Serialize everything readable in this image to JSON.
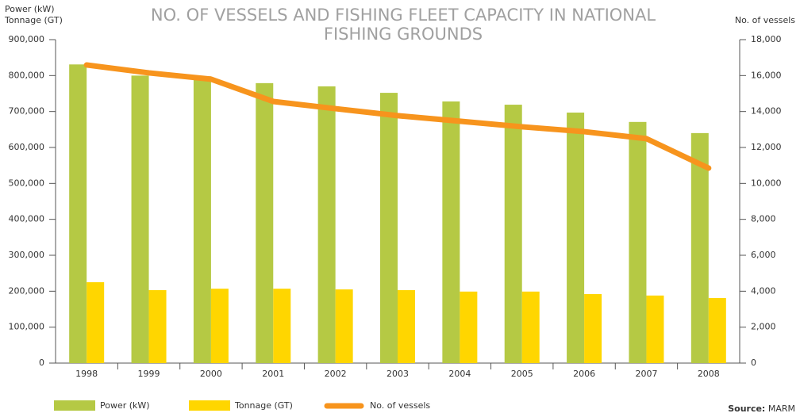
{
  "chart_data": {
    "type": "bar_line",
    "title": [
      "NO. OF VESSELS AND FISHING FLEET CAPACITY IN NATIONAL",
      "FISHING GROUNDS"
    ],
    "y_label": [
      "Power (kW)",
      "Tonnage (GT)"
    ],
    "y2_label": "No. of vessels",
    "source_label": "Source:",
    "source": "MARM",
    "categories": [
      "1998",
      "1999",
      "2000",
      "2001",
      "2002",
      "2003",
      "2004",
      "2005",
      "2006",
      "2007",
      "2008"
    ],
    "series": [
      {
        "name": "Power (kW)",
        "type": "bar",
        "color": "#b5c944",
        "values": [
          831000,
          800000,
          798000,
          779000,
          770000,
          752000,
          728000,
          719000,
          697000,
          671000,
          640000
        ]
      },
      {
        "name": "Tonnage (GT)",
        "type": "bar",
        "color": "#ffd600",
        "values": [
          225000,
          203000,
          207000,
          207000,
          205000,
          203000,
          199000,
          199000,
          192000,
          188000,
          181000
        ]
      },
      {
        "name": "No. of vessels",
        "type": "line",
        "axis": "y2",
        "color": "#f7941d",
        "values": [
          16590,
          16150,
          15800,
          14560,
          14160,
          13770,
          13460,
          13150,
          12880,
          12490,
          10850
        ]
      }
    ],
    "ylim": [
      0,
      900000
    ],
    "yticks": [
      0,
      {
        "value": 100000,
        "label": "100,000"
      },
      {
        "value": 200000,
        "label": "200,000"
      },
      {
        "value": 300000,
        "label": "300,000"
      },
      {
        "value": 400000,
        "label": "400,000"
      },
      {
        "value": 500000,
        "label": "500,000"
      },
      {
        "value": 600000,
        "label": "600,000"
      },
      {
        "value": 700000,
        "label": "700,000"
      },
      {
        "value": 800000,
        "label": "800,000"
      },
      {
        "value": 900000,
        "label": "900,000"
      }
    ],
    "y2lim": [
      0,
      18000
    ],
    "y2ticks": [
      0,
      {
        "value": 2000,
        "label": "2,000"
      },
      {
        "value": 4000,
        "label": "4,000"
      },
      {
        "value": 6000,
        "label": "6,000"
      },
      {
        "value": 8000,
        "label": "8,000"
      },
      {
        "value": 10000,
        "label": "10,000"
      },
      {
        "value": 12000,
        "label": "12,000"
      },
      {
        "value": 14000,
        "label": "14,000"
      },
      {
        "value": 16000,
        "label": "16,000"
      },
      {
        "value": 18000,
        "label": "18,000"
      }
    ],
    "legend": "bottom"
  }
}
